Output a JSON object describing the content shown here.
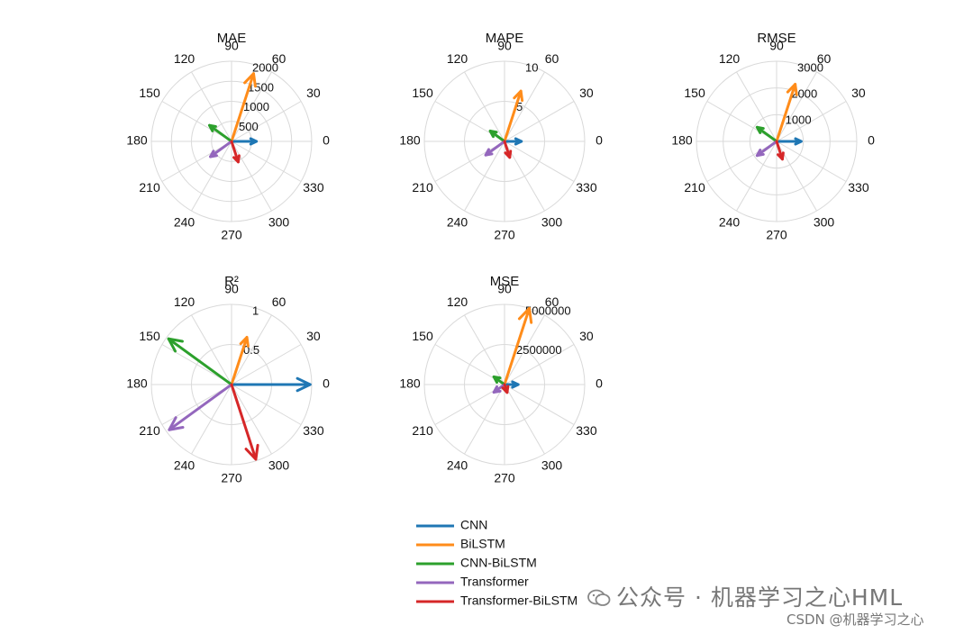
{
  "chart_data": [
    {
      "type": "polar-compass",
      "title": "MAE",
      "angle_ticks": [
        "0",
        "30",
        "60",
        "90",
        "120",
        "150",
        "180",
        "210",
        "240",
        "270",
        "300",
        "330"
      ],
      "radial_ticks": [
        "500",
        "1000",
        "1500",
        "2000"
      ],
      "rmax": 2000,
      "arrows": [
        {
          "series": "CNN",
          "magnitude": 620,
          "angle": 0
        },
        {
          "series": "BiLSTM",
          "magnitude": 1780,
          "angle": 72
        },
        {
          "series": "CNN-BiLSTM",
          "magnitude": 680,
          "angle": 144
        },
        {
          "series": "Transformer",
          "magnitude": 650,
          "angle": 216
        },
        {
          "series": "Transformer-BiLSTM",
          "magnitude": 540,
          "angle": 288
        }
      ]
    },
    {
      "type": "polar-compass",
      "title": "MAPE",
      "angle_ticks": [
        "0",
        "30",
        "60",
        "90",
        "120",
        "150",
        "180",
        "210",
        "240",
        "270",
        "300",
        "330"
      ],
      "radial_ticks": [
        "5",
        "10"
      ],
      "rmax": 10,
      "arrows": [
        {
          "series": "CNN",
          "magnitude": 2.1,
          "angle": 0
        },
        {
          "series": "BiLSTM",
          "magnitude": 6.6,
          "angle": 72
        },
        {
          "series": "CNN-BiLSTM",
          "magnitude": 2.2,
          "angle": 144
        },
        {
          "series": "Transformer",
          "magnitude": 2.9,
          "angle": 216
        },
        {
          "series": "Transformer-BiLSTM",
          "magnitude": 2.1,
          "angle": 288
        }
      ]
    },
    {
      "type": "polar-compass",
      "title": "RMSE",
      "angle_ticks": [
        "0",
        "30",
        "60",
        "90",
        "120",
        "150",
        "180",
        "210",
        "240",
        "270",
        "300",
        "330"
      ],
      "radial_ticks": [
        "1000",
        "2000",
        "3000"
      ],
      "rmax": 3000,
      "arrows": [
        {
          "series": "CNN",
          "magnitude": 920,
          "angle": 0
        },
        {
          "series": "BiLSTM",
          "magnitude": 2250,
          "angle": 72
        },
        {
          "series": "CNN-BiLSTM",
          "magnitude": 900,
          "angle": 144
        },
        {
          "series": "Transformer",
          "magnitude": 900,
          "angle": 216
        },
        {
          "series": "Transformer-BiLSTM",
          "magnitude": 700,
          "angle": 288
        }
      ]
    },
    {
      "type": "polar-compass",
      "title": "R²",
      "angle_ticks": [
        "0",
        "30",
        "60",
        "90",
        "120",
        "150",
        "180",
        "210",
        "240",
        "270",
        "300",
        "330"
      ],
      "radial_ticks": [
        "0.5",
        "1"
      ],
      "rmax": 1,
      "arrows": [
        {
          "series": "CNN",
          "magnitude": 0.98,
          "angle": 0
        },
        {
          "series": "BiLSTM",
          "magnitude": 0.62,
          "angle": 72
        },
        {
          "series": "CNN-BiLSTM",
          "magnitude": 0.97,
          "angle": 144
        },
        {
          "series": "Transformer",
          "magnitude": 0.96,
          "angle": 216
        },
        {
          "series": "Transformer-BiLSTM",
          "magnitude": 0.98,
          "angle": 288
        }
      ]
    },
    {
      "type": "polar-compass",
      "title": "MSE",
      "angle_ticks": [
        "0",
        "30",
        "60",
        "90",
        "120",
        "150",
        "180",
        "210",
        "240",
        "270",
        "300",
        "330"
      ],
      "radial_ticks": [
        "2500000",
        "5000000"
      ],
      "rmax": 5000000,
      "arrows": [
        {
          "series": "CNN",
          "magnitude": 850000,
          "angle": 0
        },
        {
          "series": "BiLSTM",
          "magnitude": 5000000,
          "angle": 72
        },
        {
          "series": "CNN-BiLSTM",
          "magnitude": 820000,
          "angle": 144
        },
        {
          "series": "Transformer",
          "magnitude": 820000,
          "angle": 216
        },
        {
          "series": "Transformer-BiLSTM",
          "magnitude": 520000,
          "angle": 288
        }
      ]
    }
  ],
  "legend": {
    "placement": "bottom-center",
    "items": [
      {
        "name": "CNN",
        "color": "#1f77b4"
      },
      {
        "name": "BiLSTM",
        "color": "#ff8c1a"
      },
      {
        "name": "CNN-BiLSTM",
        "color": "#2ca02c"
      },
      {
        "name": "Transformer",
        "color": "#9467bd"
      },
      {
        "name": "Transformer-BiLSTM",
        "color": "#d62728"
      }
    ]
  },
  "watermark": {
    "main": "公众号 · 机器学习之心HML",
    "sub": "CSDN @机器学习之心"
  }
}
